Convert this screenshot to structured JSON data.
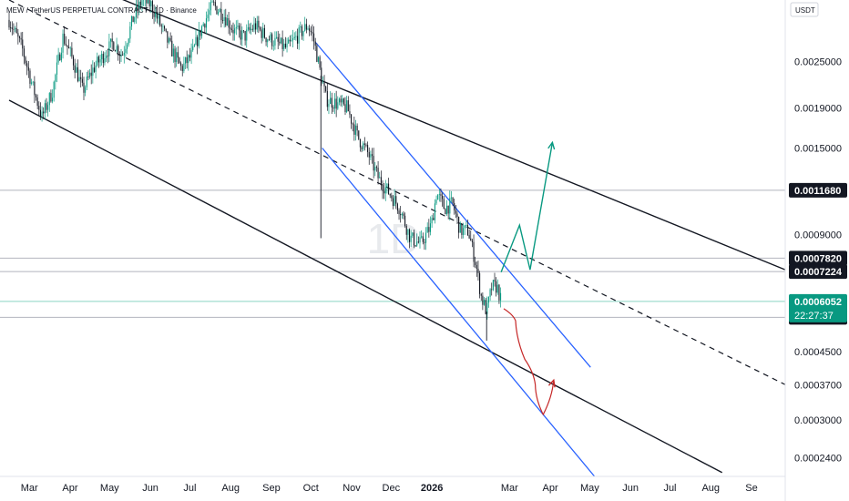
{
  "header": {
    "symbol_title": "MEW / TetherUS PERPETUAL CONTRACT · 1D · Binance",
    "currency": "USDT"
  },
  "watermark": "1D",
  "colors": {
    "candle_up": "#089981",
    "candle_down": "#131722",
    "channel_line": "#131722",
    "down_channel": "#2962ff",
    "bull_arrow": "#089981",
    "bear_arrow": "#c62828",
    "price_badge": "#089981",
    "level_badge": "#131722",
    "level_line": "#b2b5be"
  },
  "chart_data": {
    "type": "candlestick",
    "title": "MEW / TetherUS PERPETUAL CONTRACT · 1D · Binance",
    "y_scale": "log",
    "ylim": [
      0.000215,
      0.0036
    ],
    "x_axis_labels": [
      "Mar",
      "Apr",
      "May",
      "Jun",
      "Jul",
      "Aug",
      "Sep",
      "Oct",
      "Nov",
      "Dec",
      "2026",
      "Mar",
      "Apr",
      "May",
      "Jun",
      "Jul",
      "Aug",
      "Se"
    ],
    "y_tick_labels": [
      "0.0025000",
      "0.0019000",
      "0.0015000",
      "0.0009000",
      "0.0004500",
      "0.0003700",
      "0.0003000",
      "0.0002400"
    ],
    "y_tick_values": [
      0.0025,
      0.0019,
      0.0015,
      0.0009,
      0.00045,
      0.00037,
      0.0003,
      0.00024
    ],
    "price_levels": [
      {
        "label": "0.0011680",
        "value": 0.001168
      },
      {
        "label": "0.0007820",
        "value": 0.000782
      },
      {
        "label": "0.0007224",
        "value": 0.0007224
      },
      {
        "label": "0.0005510",
        "value": 0.000551
      }
    ],
    "current_price": {
      "label": "0.0006052",
      "value": 0.0006052,
      "countdown": "22:27:37"
    },
    "price_path": [
      [
        "2025-02-15",
        0.0032
      ],
      [
        "2025-02-25",
        0.0027
      ],
      [
        "2025-03-05",
        0.00215
      ],
      [
        "2025-03-12",
        0.0018
      ],
      [
        "2025-03-20",
        0.0021
      ],
      [
        "2025-03-28",
        0.0029
      ],
      [
        "2025-04-05",
        0.0025
      ],
      [
        "2025-04-12",
        0.0021
      ],
      [
        "2025-04-20",
        0.0024
      ],
      [
        "2025-04-28",
        0.0026
      ],
      [
        "2025-05-05",
        0.0028
      ],
      [
        "2025-05-12",
        0.0026
      ],
      [
        "2025-05-20",
        0.0032
      ],
      [
        "2025-05-27",
        0.0036
      ],
      [
        "2025-06-03",
        0.0035
      ],
      [
        "2025-06-10",
        0.0031
      ],
      [
        "2025-06-18",
        0.0027
      ],
      [
        "2025-06-26",
        0.0024
      ],
      [
        "2025-07-04",
        0.0026
      ],
      [
        "2025-07-12",
        0.0031
      ],
      [
        "2025-07-20",
        0.0035
      ],
      [
        "2025-07-28",
        0.0033
      ],
      [
        "2025-08-05",
        0.003
      ],
      [
        "2025-08-13",
        0.0029
      ],
      [
        "2025-08-21",
        0.0031
      ],
      [
        "2025-08-29",
        0.0029
      ],
      [
        "2025-09-06",
        0.0028
      ],
      [
        "2025-09-14",
        0.0027
      ],
      [
        "2025-09-22",
        0.0029
      ],
      [
        "2025-09-30",
        0.0031
      ],
      [
        "2025-10-04",
        0.0029
      ],
      [
        "2025-10-08",
        0.0025
      ],
      [
        "2025-10-10",
        0.0023
      ],
      [
        "2025-10-14",
        0.002
      ],
      [
        "2025-10-22",
        0.00195
      ],
      [
        "2025-10-30",
        0.0019
      ],
      [
        "2025-11-07",
        0.0016
      ],
      [
        "2025-11-15",
        0.00145
      ],
      [
        "2025-11-23",
        0.00125
      ],
      [
        "2025-12-01",
        0.00115
      ],
      [
        "2025-12-09",
        0.00105
      ],
      [
        "2025-12-17",
        0.00088
      ],
      [
        "2025-12-25",
        0.00085
      ],
      [
        "2026-01-02",
        0.00095
      ],
      [
        "2026-01-06",
        0.00115
      ],
      [
        "2026-01-12",
        0.00105
      ],
      [
        "2026-01-18",
        0.00108
      ],
      [
        "2026-01-24",
        0.00092
      ],
      [
        "2026-01-30",
        0.00092
      ],
      [
        "2026-02-05",
        0.00075
      ],
      [
        "2026-02-09",
        0.00062
      ],
      [
        "2026-02-13",
        0.00057
      ],
      [
        "2026-02-17",
        0.00066
      ],
      [
        "2026-02-21",
        0.00066
      ],
      [
        "2026-02-24",
        0.0006052
      ]
    ],
    "wick_extremes": [
      {
        "date": "2025-10-10",
        "low": 0.00088
      },
      {
        "date": "2026-02-13",
        "low": 0.00048
      }
    ],
    "trendlines": {
      "outer_channel_upper": [
        [
          "2025-04-14",
          0.00395
        ],
        [
          "2026-09-28",
          0.00073
        ]
      ],
      "outer_channel_lower": [
        [
          "2025-02-15",
          0.00199
        ],
        [
          "2026-08-11",
          0.00022
        ]
      ],
      "midline_dashed": [
        [
          "2025-02-15",
          0.0036
        ],
        [
          "2026-09-28",
          0.00037
        ]
      ],
      "down_channel_upper": [
        [
          "2025-10-06",
          0.0028
        ],
        [
          "2026-05-03",
          0.00041
        ]
      ],
      "down_channel_lower": [
        [
          "2025-10-11",
          0.0015
        ],
        [
          "2026-05-06",
          0.000215
        ]
      ]
    },
    "projections": {
      "bull_path": [
        [
          "2026-02-24",
          0.00072
        ],
        [
          "2026-03-10",
          0.00095
        ],
        [
          "2026-03-18",
          0.00073
        ],
        [
          "2026-04-04",
          0.00155
        ]
      ],
      "bear_path": [
        [
          "2026-02-26",
          0.00058
        ],
        [
          "2026-03-07",
          0.00054
        ],
        [
          "2026-03-14",
          0.00043
        ],
        [
          "2026-03-22",
          0.00037
        ],
        [
          "2026-03-28",
          0.00031
        ],
        [
          "2026-04-05",
          0.00038
        ]
      ]
    }
  }
}
